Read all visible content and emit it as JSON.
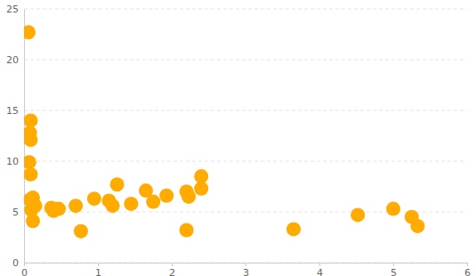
{
  "chart_data": {
    "type": "scatter",
    "x": [
      0.06,
      0.09,
      0.08,
      0.09,
      0.07,
      0.09,
      0.08,
      0.12,
      0.15,
      0.1,
      0.12,
      0.37,
      0.4,
      0.47,
      0.7,
      0.77,
      0.95,
      1.15,
      1.2,
      1.26,
      1.45,
      1.65,
      1.75,
      1.93,
      2.2,
      2.23,
      2.2,
      2.4,
      2.4,
      3.65,
      4.52,
      5.0,
      5.25,
      5.33
    ],
    "values": [
      22.7,
      14.0,
      12.8,
      12.1,
      9.9,
      8.7,
      6.2,
      6.4,
      5.6,
      5.2,
      4.1,
      5.4,
      5.1,
      5.3,
      5.6,
      3.1,
      6.3,
      6.1,
      5.6,
      7.7,
      5.8,
      7.1,
      6.0,
      6.6,
      7.0,
      6.5,
      3.2,
      8.5,
      7.3,
      3.3,
      4.7,
      5.3,
      4.5,
      3.6
    ],
    "color": "#ffab00",
    "marker": "circle",
    "xlim": [
      0,
      6
    ],
    "xticks": [
      0,
      1,
      2,
      3,
      4,
      5,
      6
    ],
    "ylim": [
      0,
      25
    ],
    "yticks": [
      0,
      5,
      10,
      15,
      20,
      25
    ],
    "grid": true
  }
}
